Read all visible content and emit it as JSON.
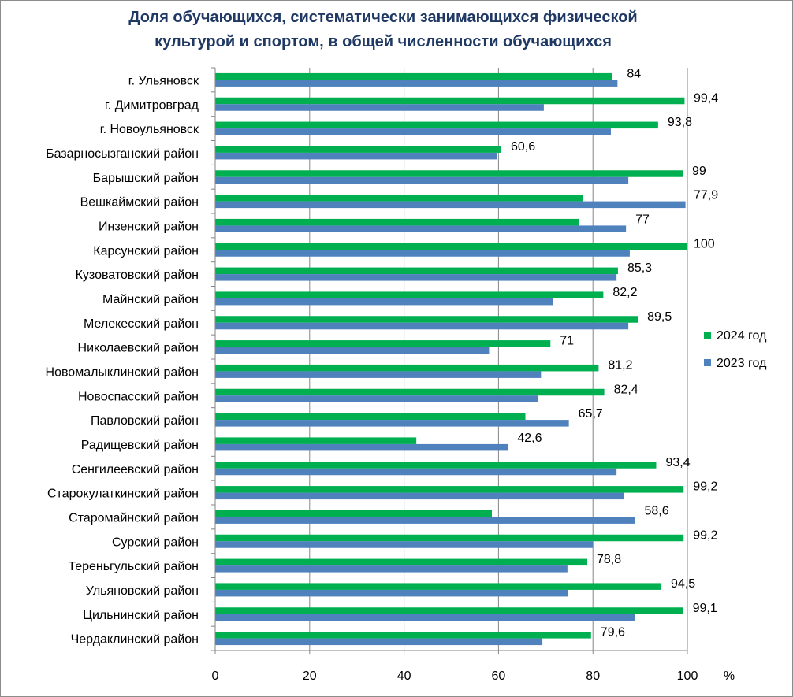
{
  "chart_data": {
    "type": "bar",
    "orientation": "horizontal",
    "title": "Доля обучающихся, систематически занимающихся физической культурой и спортом, в общей численности обучающихся",
    "title_lines": [
      "Доля обучающихся, систематически занимающихся физической",
      "культурой и спортом, в общей численности обучающихся"
    ],
    "xlabel": "%",
    "ylabel": "",
    "xlim": [
      0,
      100
    ],
    "xticks": [
      0,
      20,
      40,
      60,
      80,
      100
    ],
    "grid": true,
    "legend_position": "right",
    "categories": [
      "г. Ульяновск",
      "г. Димитровград",
      "г. Новоульяновск",
      "Базарносызганский район",
      "Барышский район",
      "Вешкаймский район",
      "Инзенский район",
      "Карсунский район",
      "Кузоватовский район",
      "Майнский район",
      "Мелекесский район",
      "Николаевский район",
      "Новомалыклинский район",
      "Новоспасский район",
      "Павловский район",
      "Радищевский район",
      "Сенгилеевский район",
      "Старокулаткинский район",
      "Старомайнский район",
      "Сурский район",
      "Тереньгульский район",
      "Ульяновский район",
      "Цильнинский район",
      "Чердаклинский район"
    ],
    "series": [
      {
        "name": "2024 год",
        "color": "#00b050",
        "values": [
          84,
          99.4,
          93.8,
          60.6,
          99,
          77.9,
          77,
          100,
          85.3,
          82.2,
          89.5,
          71,
          81.2,
          82.4,
          65.7,
          42.6,
          93.4,
          99.2,
          58.6,
          99.2,
          78.8,
          94.5,
          99.1,
          79.6
        ],
        "labels": [
          "84",
          "99,4",
          "93,8",
          "60,6",
          "99",
          "77,9",
          "77",
          "100",
          "85,3",
          "82,2",
          "89,5",
          "71",
          "81,2",
          "82,4",
          "65,7",
          "42,6",
          "93,4",
          "99,2",
          "58,6",
          "99,2",
          "78,8",
          "94,5",
          "99,1",
          "79,6"
        ]
      },
      {
        "name": "2023 год",
        "color": "#4f81bd",
        "values": [
          85.2,
          69.6,
          83.8,
          59.6,
          87.5,
          99.6,
          87,
          87.8,
          85,
          71.6,
          87.5,
          58,
          69,
          68.3,
          74.9,
          62,
          85,
          86.5,
          88.9,
          80,
          74.6,
          74.7,
          88.9,
          69.3
        ]
      }
    ]
  }
}
